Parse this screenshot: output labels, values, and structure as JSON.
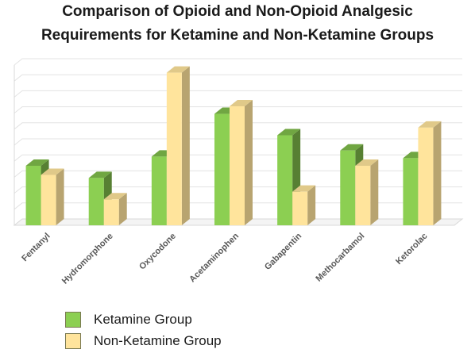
{
  "chart_data": {
    "type": "bar",
    "title_line1": "Comparison of Opioid and Non-Opioid Analgesic",
    "title_line2": "Requirements for Ketamine and Non-Ketamine Groups",
    "categories": [
      "Fentanyl",
      "Hydromorphone",
      "Oxycodone",
      "Acetaminophen",
      "Gabapentin",
      "Methocarbamol",
      "Ketorolac"
    ],
    "series": [
      {
        "name": "Ketamine Group",
        "color": "#8ccf52",
        "values": [
          3.9,
          3.1,
          4.5,
          7.3,
          5.9,
          4.9,
          4.4
        ]
      },
      {
        "name": "Non-Ketamine Group",
        "color": "#ffe49c",
        "values": [
          3.3,
          1.7,
          10.0,
          7.8,
          2.2,
          3.9,
          6.4
        ]
      }
    ],
    "ylim": [
      0,
      10.5
    ],
    "grid": true,
    "legend_position": "bottom-left",
    "xlabel": "",
    "ylabel": ""
  }
}
